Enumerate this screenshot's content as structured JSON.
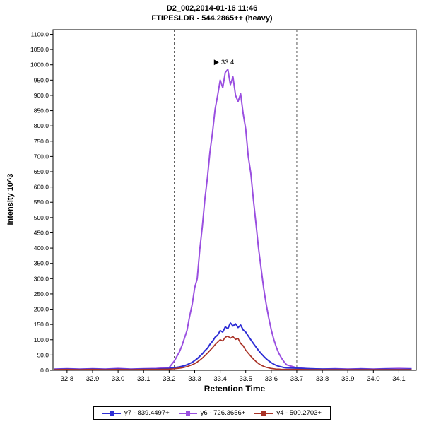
{
  "chart_data": {
    "type": "line",
    "title": "D2_002,2014-01-16 11:46",
    "subtitle": "FTIPESLDR - 544.2865++ (heavy)",
    "xlabel": "Retention Time",
    "ylabel": "Intensity 10^3",
    "xlim": [
      32.745,
      34.168
    ],
    "ylim": [
      0,
      1115
    ],
    "grid": false,
    "legend_position": "bottom-center",
    "x_ticks": [
      32.8,
      32.9,
      33.0,
      33.1,
      33.2,
      33.3,
      33.4,
      33.5,
      33.6,
      33.7,
      33.8,
      33.9,
      34.0,
      34.1
    ],
    "y_ticks": [
      0,
      50,
      100,
      150,
      200,
      250,
      300,
      350,
      400,
      450,
      500,
      550,
      600,
      650,
      700,
      750,
      800,
      850,
      900,
      950,
      1000,
      1050,
      1100
    ],
    "annotation": {
      "label": "33.4",
      "x": 33.42,
      "y": 985,
      "marker": "peak-pointer-triangle-icon",
      "color": "#8A4FD8"
    },
    "integration_boundaries": {
      "left": 33.22,
      "right": 33.7,
      "style": "dashed",
      "color": "#555555"
    },
    "x": [
      32.75,
      32.8,
      32.85,
      32.9,
      32.95,
      33.0,
      33.05,
      33.1,
      33.15,
      33.2,
      33.22,
      33.23,
      33.24,
      33.25,
      33.26,
      33.27,
      33.28,
      33.29,
      33.3,
      33.31,
      33.32,
      33.33,
      33.34,
      33.35,
      33.36,
      33.37,
      33.38,
      33.39,
      33.4,
      33.41,
      33.42,
      33.43,
      33.44,
      33.45,
      33.46,
      33.47,
      33.48,
      33.49,
      33.5,
      33.51,
      33.52,
      33.53,
      33.54,
      33.55,
      33.56,
      33.57,
      33.58,
      33.59,
      33.6,
      33.61,
      33.62,
      33.63,
      33.64,
      33.65,
      33.66,
      33.7,
      33.75,
      33.8,
      33.85,
      33.9,
      33.95,
      34.0,
      34.05,
      34.1,
      34.15
    ],
    "series": [
      {
        "name": "y7 - 839.4497+",
        "color": "#2E2ED5",
        "width": 2,
        "values": [
          3,
          4,
          3,
          4,
          3,
          4,
          3,
          4,
          4,
          6,
          9,
          10,
          11,
          13,
          15,
          18,
          22,
          26,
          32,
          38,
          46,
          54,
          64,
          72,
          85,
          95,
          108,
          115,
          130,
          125,
          142,
          136,
          155,
          145,
          152,
          140,
          148,
          132,
          125,
          112,
          100,
          88,
          76,
          65,
          55,
          46,
          38,
          31,
          25,
          20,
          16,
          13,
          11,
          9,
          8,
          7,
          5,
          4,
          4,
          3,
          4,
          3,
          4,
          3,
          4
        ]
      },
      {
        "name": "y6 - 726.3656+",
        "color": "#9A4FE0",
        "width": 2,
        "values": [
          4,
          5,
          4,
          5,
          4,
          6,
          4,
          5,
          6,
          9,
          30,
          45,
          60,
          80,
          105,
          130,
          175,
          215,
          270,
          300,
          395,
          470,
          560,
          630,
          715,
          780,
          855,
          900,
          950,
          925,
          975,
          985,
          935,
          960,
          900,
          880,
          905,
          840,
          790,
          700,
          645,
          560,
          480,
          400,
          335,
          270,
          218,
          172,
          133,
          101,
          75,
          55,
          40,
          28,
          18,
          8,
          5,
          4,
          5,
          4,
          5,
          4,
          5,
          6,
          5
        ]
      },
      {
        "name": "y4 - 500.2703+",
        "color": "#A93226",
        "width": 1.7,
        "values": [
          2,
          3,
          2,
          3,
          2,
          3,
          2,
          3,
          3,
          4,
          5,
          6,
          7,
          8,
          10,
          12,
          15,
          18,
          22,
          27,
          33,
          40,
          48,
          56,
          65,
          74,
          84,
          92,
          100,
          96,
          108,
          112,
          105,
          110,
          101,
          104,
          88,
          80,
          66,
          56,
          46,
          37,
          29,
          22,
          17,
          13,
          10,
          8,
          6,
          5,
          4,
          4,
          3,
          3,
          3,
          3,
          2,
          2,
          2,
          2,
          2,
          2,
          2,
          2,
          2
        ]
      }
    ]
  }
}
